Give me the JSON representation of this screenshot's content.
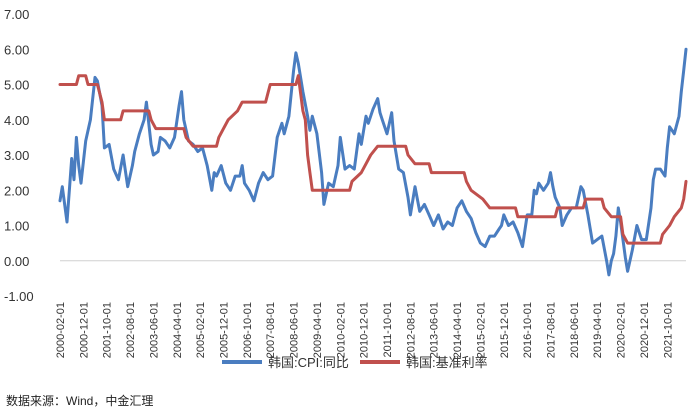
{
  "chart_data": {
    "type": "line",
    "title": "",
    "xlabel": "",
    "ylabel": "",
    "ylim": [
      -1.0,
      7.0
    ],
    "yticks": [
      "7.00",
      "6.00",
      "5.00",
      "4.00",
      "3.00",
      "2.00",
      "1.00",
      "0.00",
      "-1.00"
    ],
    "xticks": [
      "2000-02-01",
      "2000-12-01",
      "2001-10-01",
      "2002-08-01",
      "2003-06-01",
      "2004-04-01",
      "2005-02-01",
      "2005-12-01",
      "2006-10-01",
      "2007-08-01",
      "2008-06-01",
      "2009-04-01",
      "2010-02-01",
      "2010-12-01",
      "2011-10-01",
      "2012-08-01",
      "2013-06-01",
      "2014-04-01",
      "2015-02-01",
      "2015-12-01",
      "2016-10-01",
      "2017-08-01",
      "2018-06-01",
      "2019-04-01",
      "2020-02-01",
      "2020-12-01",
      "2021-10-01"
    ],
    "x_range": [
      "2000-02-01",
      "2022-06-01"
    ],
    "grid": false,
    "legend_position": "bottom",
    "series": [
      {
        "name": "韩国:CPI:同比",
        "color": "#4a7dc0",
        "points": [
          [
            "2000-02-01",
            1.7
          ],
          [
            "2000-03-01",
            2.1
          ],
          [
            "2000-05-01",
            1.1
          ],
          [
            "2000-07-01",
            2.9
          ],
          [
            "2000-08-01",
            2.3
          ],
          [
            "2000-09-01",
            3.5
          ],
          [
            "2000-10-01",
            2.7
          ],
          [
            "2000-11-01",
            2.2
          ],
          [
            "2001-01-01",
            3.4
          ],
          [
            "2001-03-01",
            4.0
          ],
          [
            "2001-05-01",
            5.2
          ],
          [
            "2001-06-01",
            5.1
          ],
          [
            "2001-08-01",
            4.4
          ],
          [
            "2001-09-01",
            3.2
          ],
          [
            "2001-11-01",
            3.3
          ],
          [
            "2002-01-01",
            2.6
          ],
          [
            "2002-03-01",
            2.3
          ],
          [
            "2002-05-01",
            3.0
          ],
          [
            "2002-07-01",
            2.1
          ],
          [
            "2002-09-01",
            2.7
          ],
          [
            "2002-10-01",
            3.1
          ],
          [
            "2002-12-01",
            3.6
          ],
          [
            "2003-02-01",
            4.0
          ],
          [
            "2003-03-01",
            4.5
          ],
          [
            "2003-05-01",
            3.3
          ],
          [
            "2003-06-01",
            3.0
          ],
          [
            "2003-08-01",
            3.1
          ],
          [
            "2003-09-01",
            3.5
          ],
          [
            "2003-11-01",
            3.4
          ],
          [
            "2004-01-01",
            3.2
          ],
          [
            "2004-03-01",
            3.5
          ],
          [
            "2004-05-01",
            4.4
          ],
          [
            "2004-06-01",
            4.8
          ],
          [
            "2004-07-01",
            4.0
          ],
          [
            "2004-09-01",
            3.4
          ],
          [
            "2004-11-01",
            3.3
          ],
          [
            "2005-01-01",
            3.1
          ],
          [
            "2005-03-01",
            3.2
          ],
          [
            "2005-05-01",
            2.7
          ],
          [
            "2005-07-01",
            2.0
          ],
          [
            "2005-08-01",
            2.5
          ],
          [
            "2005-09-01",
            2.4
          ],
          [
            "2005-11-01",
            2.7
          ],
          [
            "2006-01-01",
            2.2
          ],
          [
            "2006-03-01",
            2.0
          ],
          [
            "2006-05-01",
            2.4
          ],
          [
            "2006-07-01",
            2.4
          ],
          [
            "2006-08-01",
            2.7
          ],
          [
            "2006-09-01",
            2.2
          ],
          [
            "2006-11-01",
            2.0
          ],
          [
            "2007-01-01",
            1.7
          ],
          [
            "2007-03-01",
            2.2
          ],
          [
            "2007-05-01",
            2.5
          ],
          [
            "2007-07-01",
            2.3
          ],
          [
            "2007-09-01",
            2.4
          ],
          [
            "2007-11-01",
            3.5
          ],
          [
            "2008-01-01",
            3.9
          ],
          [
            "2008-02-01",
            3.6
          ],
          [
            "2008-04-01",
            4.1
          ],
          [
            "2008-06-01",
            5.4
          ],
          [
            "2008-07-01",
            5.9
          ],
          [
            "2008-08-01",
            5.6
          ],
          [
            "2008-10-01",
            4.8
          ],
          [
            "2008-12-01",
            4.1
          ],
          [
            "2009-01-01",
            3.7
          ],
          [
            "2009-02-01",
            4.1
          ],
          [
            "2009-04-01",
            3.6
          ],
          [
            "2009-06-01",
            2.5
          ],
          [
            "2009-07-01",
            1.6
          ],
          [
            "2009-09-01",
            2.2
          ],
          [
            "2009-11-01",
            2.1
          ],
          [
            "2010-01-01",
            2.7
          ],
          [
            "2010-02-01",
            3.5
          ],
          [
            "2010-04-01",
            2.6
          ],
          [
            "2010-06-01",
            2.7
          ],
          [
            "2010-08-01",
            2.6
          ],
          [
            "2010-10-01",
            3.6
          ],
          [
            "2010-11-01",
            3.3
          ],
          [
            "2011-01-01",
            4.1
          ],
          [
            "2011-02-01",
            3.9
          ],
          [
            "2011-04-01",
            4.3
          ],
          [
            "2011-06-01",
            4.6
          ],
          [
            "2011-07-01",
            4.2
          ],
          [
            "2011-08-01",
            4.0
          ],
          [
            "2011-10-01",
            3.6
          ],
          [
            "2011-12-01",
            4.2
          ],
          [
            "2012-01-01",
            3.4
          ],
          [
            "2012-03-01",
            2.6
          ],
          [
            "2012-05-01",
            2.5
          ],
          [
            "2012-07-01",
            1.8
          ],
          [
            "2012-08-01",
            1.3
          ],
          [
            "2012-10-01",
            2.1
          ],
          [
            "2012-12-01",
            1.4
          ],
          [
            "2013-02-01",
            1.6
          ],
          [
            "2013-04-01",
            1.3
          ],
          [
            "2013-06-01",
            1.0
          ],
          [
            "2013-08-01",
            1.3
          ],
          [
            "2013-10-01",
            0.9
          ],
          [
            "2013-12-01",
            1.1
          ],
          [
            "2014-02-01",
            1.0
          ],
          [
            "2014-04-01",
            1.5
          ],
          [
            "2014-06-01",
            1.7
          ],
          [
            "2014-08-01",
            1.4
          ],
          [
            "2014-10-01",
            1.2
          ],
          [
            "2014-12-01",
            0.8
          ],
          [
            "2015-02-01",
            0.5
          ],
          [
            "2015-04-01",
            0.4
          ],
          [
            "2015-06-01",
            0.7
          ],
          [
            "2015-08-01",
            0.7
          ],
          [
            "2015-10-01",
            0.9
          ],
          [
            "2015-11-01",
            1.0
          ],
          [
            "2015-12-01",
            1.3
          ],
          [
            "2016-02-01",
            1.0
          ],
          [
            "2016-04-01",
            1.1
          ],
          [
            "2016-06-01",
            0.8
          ],
          [
            "2016-08-01",
            0.4
          ],
          [
            "2016-10-01",
            1.3
          ],
          [
            "2016-12-01",
            1.3
          ],
          [
            "2017-01-01",
            2.0
          ],
          [
            "2017-02-01",
            1.9
          ],
          [
            "2017-03-01",
            2.2
          ],
          [
            "2017-05-01",
            2.0
          ],
          [
            "2017-07-01",
            2.2
          ],
          [
            "2017-08-01",
            2.5
          ],
          [
            "2017-09-01",
            2.1
          ],
          [
            "2017-10-01",
            1.8
          ],
          [
            "2017-12-01",
            1.5
          ],
          [
            "2018-01-01",
            1.0
          ],
          [
            "2018-03-01",
            1.3
          ],
          [
            "2018-05-01",
            1.5
          ],
          [
            "2018-07-01",
            1.5
          ],
          [
            "2018-09-01",
            2.1
          ],
          [
            "2018-10-01",
            2.0
          ],
          [
            "2018-12-01",
            1.3
          ],
          [
            "2019-02-01",
            0.5
          ],
          [
            "2019-04-01",
            0.6
          ],
          [
            "2019-06-01",
            0.7
          ],
          [
            "2019-08-01",
            0.0
          ],
          [
            "2019-09-01",
            -0.4
          ],
          [
            "2019-10-01",
            0.0
          ],
          [
            "2019-11-01",
            0.2
          ],
          [
            "2019-12-01",
            0.7
          ],
          [
            "2020-01-01",
            1.5
          ],
          [
            "2020-02-01",
            1.1
          ],
          [
            "2020-04-01",
            0.1
          ],
          [
            "2020-05-01",
            -0.3
          ],
          [
            "2020-07-01",
            0.3
          ],
          [
            "2020-09-01",
            1.0
          ],
          [
            "2020-11-01",
            0.6
          ],
          [
            "2021-01-01",
            0.6
          ],
          [
            "2021-03-01",
            1.5
          ],
          [
            "2021-04-01",
            2.3
          ],
          [
            "2021-05-01",
            2.6
          ],
          [
            "2021-07-01",
            2.6
          ],
          [
            "2021-09-01",
            2.4
          ],
          [
            "2021-10-01",
            3.2
          ],
          [
            "2021-11-01",
            3.8
          ],
          [
            "2021-12-01",
            3.7
          ],
          [
            "2022-01-01",
            3.6
          ],
          [
            "2022-03-01",
            4.1
          ],
          [
            "2022-04-01",
            4.8
          ],
          [
            "2022-05-01",
            5.4
          ],
          [
            "2022-06-01",
            6.0
          ]
        ]
      },
      {
        "name": "韩国:基准利率",
        "color": "#c0504d",
        "points": [
          [
            "2000-02-01",
            5.0
          ],
          [
            "2000-09-01",
            5.0
          ],
          [
            "2000-10-01",
            5.25
          ],
          [
            "2001-01-01",
            5.25
          ],
          [
            "2001-02-01",
            5.0
          ],
          [
            "2001-06-01",
            5.0
          ],
          [
            "2001-07-01",
            4.75
          ],
          [
            "2001-08-01",
            4.5
          ],
          [
            "2001-09-01",
            4.0
          ],
          [
            "2002-04-01",
            4.0
          ],
          [
            "2002-05-01",
            4.25
          ],
          [
            "2003-04-01",
            4.25
          ],
          [
            "2003-05-01",
            4.0
          ],
          [
            "2003-07-01",
            3.75
          ],
          [
            "2004-07-01",
            3.75
          ],
          [
            "2004-08-01",
            3.5
          ],
          [
            "2004-11-01",
            3.25
          ],
          [
            "2005-09-01",
            3.25
          ],
          [
            "2005-10-01",
            3.5
          ],
          [
            "2005-12-01",
            3.75
          ],
          [
            "2006-02-01",
            4.0
          ],
          [
            "2006-06-01",
            4.25
          ],
          [
            "2006-08-01",
            4.5
          ],
          [
            "2007-06-01",
            4.5
          ],
          [
            "2007-07-01",
            4.75
          ],
          [
            "2007-08-01",
            5.0
          ],
          [
            "2008-07-01",
            5.0
          ],
          [
            "2008-08-01",
            5.25
          ],
          [
            "2008-10-01",
            4.25
          ],
          [
            "2008-11-01",
            4.0
          ],
          [
            "2008-12-01",
            3.0
          ],
          [
            "2009-01-01",
            2.5
          ],
          [
            "2009-02-01",
            2.0
          ],
          [
            "2010-06-01",
            2.0
          ],
          [
            "2010-07-01",
            2.25
          ],
          [
            "2010-11-01",
            2.5
          ],
          [
            "2011-01-01",
            2.75
          ],
          [
            "2011-03-01",
            3.0
          ],
          [
            "2011-06-01",
            3.25
          ],
          [
            "2012-06-01",
            3.25
          ],
          [
            "2012-07-01",
            3.0
          ],
          [
            "2012-10-01",
            2.75
          ],
          [
            "2013-04-01",
            2.75
          ],
          [
            "2013-05-01",
            2.5
          ],
          [
            "2014-07-01",
            2.5
          ],
          [
            "2014-08-01",
            2.25
          ],
          [
            "2014-10-01",
            2.0
          ],
          [
            "2015-03-01",
            1.75
          ],
          [
            "2015-06-01",
            1.5
          ],
          [
            "2016-05-01",
            1.5
          ],
          [
            "2016-06-01",
            1.25
          ],
          [
            "2017-10-01",
            1.25
          ],
          [
            "2017-11-01",
            1.5
          ],
          [
            "2018-10-01",
            1.5
          ],
          [
            "2018-11-01",
            1.75
          ],
          [
            "2019-06-01",
            1.75
          ],
          [
            "2019-07-01",
            1.5
          ],
          [
            "2019-10-01",
            1.25
          ],
          [
            "2020-02-01",
            1.25
          ],
          [
            "2020-03-01",
            0.75
          ],
          [
            "2020-05-01",
            0.5
          ],
          [
            "2021-07-01",
            0.5
          ],
          [
            "2021-08-01",
            0.75
          ],
          [
            "2021-11-01",
            1.0
          ],
          [
            "2022-01-01",
            1.25
          ],
          [
            "2022-04-01",
            1.5
          ],
          [
            "2022-05-01",
            1.75
          ],
          [
            "2022-06-01",
            2.25
          ]
        ]
      }
    ]
  },
  "source_note": "数据来源：Wind，中金汇理"
}
